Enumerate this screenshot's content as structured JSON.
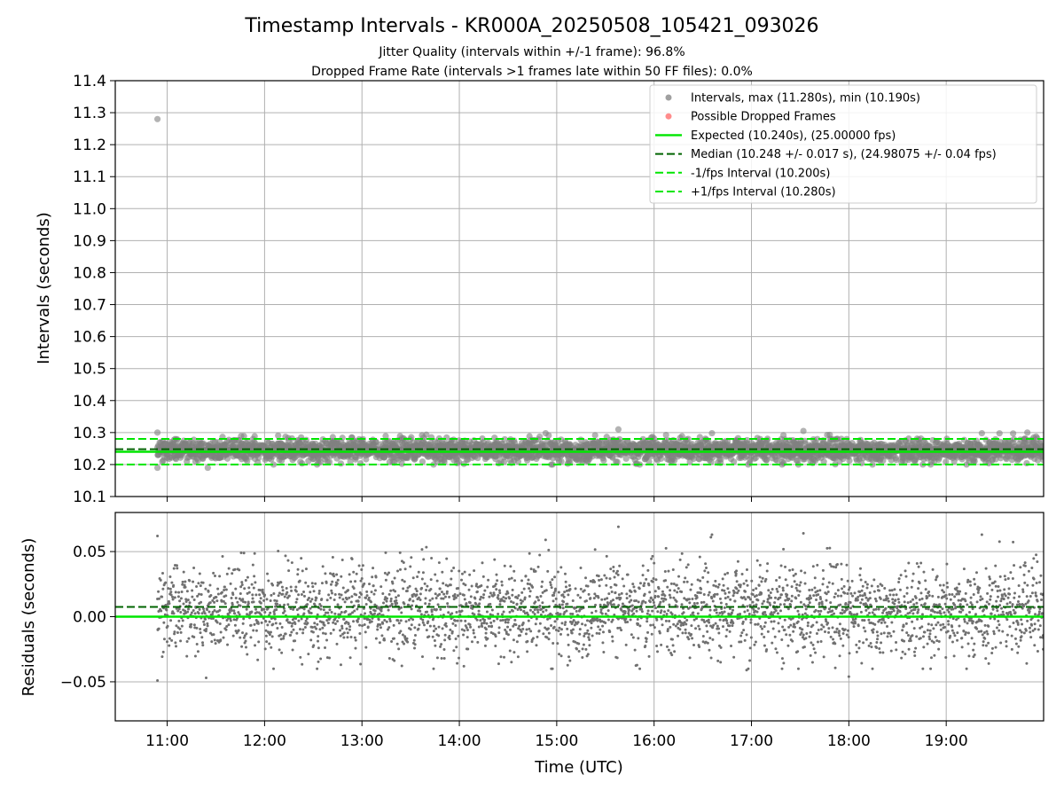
{
  "chart_data": [
    {
      "type": "scatter",
      "title": "Timestamp Intervals - KR000A_20250508_105421_093026",
      "subtitle_lines": [
        "Jitter Quality (intervals within +/-1 frame): 96.8%",
        "Dropped Frame Rate (intervals >1 frames late within 50 FF files): 0.0%"
      ],
      "xlabel": "",
      "ylabel": "Intervals (seconds)",
      "ylim": [
        10.1,
        11.4
      ],
      "yticks": [
        "10.1",
        "10.2",
        "10.3",
        "10.4",
        "10.5",
        "10.6",
        "10.7",
        "10.8",
        "10.9",
        "11.0",
        "11.1",
        "11.2",
        "11.3",
        "11.4"
      ],
      "grid": true,
      "legend_position": "top-right",
      "series": [
        {
          "name": "Intervals, max (11.280s), min (10.190s)",
          "kind": "scatter",
          "color": "#808080",
          "x_range": [
            "10:54",
            "20:00"
          ],
          "approx_count": 3200,
          "center": 10.245,
          "spread": 0.017,
          "notable_points": [
            {
              "x": "10:54",
              "y": 11.28
            },
            {
              "x": "10:54",
              "y": 10.3
            },
            {
              "x": "10:54",
              "y": 10.19
            },
            {
              "x": "11:25",
              "y": 10.19
            },
            {
              "x": "15:38",
              "y": 10.31
            },
            {
              "x": "17:32",
              "y": 10.305
            },
            {
              "x": "19:50",
              "y": 10.3
            }
          ]
        },
        {
          "name": "Possible Dropped Frames",
          "kind": "scatter",
          "color": "#ff6666",
          "points": []
        },
        {
          "name": "Expected (10.240s), (25.00000 fps)",
          "kind": "hline",
          "y": 10.24,
          "color": "#00e600",
          "style": "solid"
        },
        {
          "name": "Median (10.248 +/- 0.017 s), (24.98075 +/- 0.04 fps)",
          "kind": "hline",
          "y": 10.248,
          "color": "#006400",
          "style": "dashed"
        },
        {
          "name": "-1/fps Interval (10.200s)",
          "kind": "hline",
          "y": 10.2,
          "color": "#00e600",
          "style": "dashed"
        },
        {
          "name": "+1/fps Interval (10.280s)",
          "kind": "hline",
          "y": 10.28,
          "color": "#00e600",
          "style": "dashed"
        }
      ]
    },
    {
      "type": "scatter",
      "xlabel": "Time (UTC)",
      "ylabel": "Residuals (seconds)",
      "xlim": [
        "10:28",
        "20:00"
      ],
      "xticks": [
        "11:00",
        "12:00",
        "13:00",
        "14:00",
        "15:00",
        "16:00",
        "17:00",
        "18:00",
        "19:00"
      ],
      "ylim": [
        -0.08,
        0.08
      ],
      "yticks": [
        {
          "value": 0.05,
          "label": "0.05"
        },
        {
          "value": 0.0,
          "label": "0.00"
        },
        {
          "value": -0.05,
          "label": "−0.05"
        }
      ],
      "grid": true,
      "series": [
        {
          "name": "Residuals",
          "kind": "scatter",
          "color": "#707070",
          "x_range": [
            "10:54",
            "20:00"
          ],
          "approx_count": 3200,
          "center": 0.005,
          "spread": 0.017,
          "notable_points": [
            {
              "x": "10:54",
              "y": 0.062
            },
            {
              "x": "10:54",
              "y": -0.049
            },
            {
              "x": "11:24",
              "y": -0.047
            },
            {
              "x": "15:38",
              "y": 0.069
            },
            {
              "x": "16:35",
              "y": 0.061
            },
            {
              "x": "17:32",
              "y": 0.064
            },
            {
              "x": "18:00",
              "y": -0.046
            },
            {
              "x": "16:57",
              "y": -0.041
            }
          ]
        },
        {
          "name": "Expected",
          "kind": "hline",
          "y": 0.0,
          "color": "#00e600",
          "style": "solid"
        },
        {
          "name": "Median",
          "kind": "hline",
          "y": 0.0075,
          "color": "#006400",
          "style": "dashed"
        }
      ]
    }
  ]
}
